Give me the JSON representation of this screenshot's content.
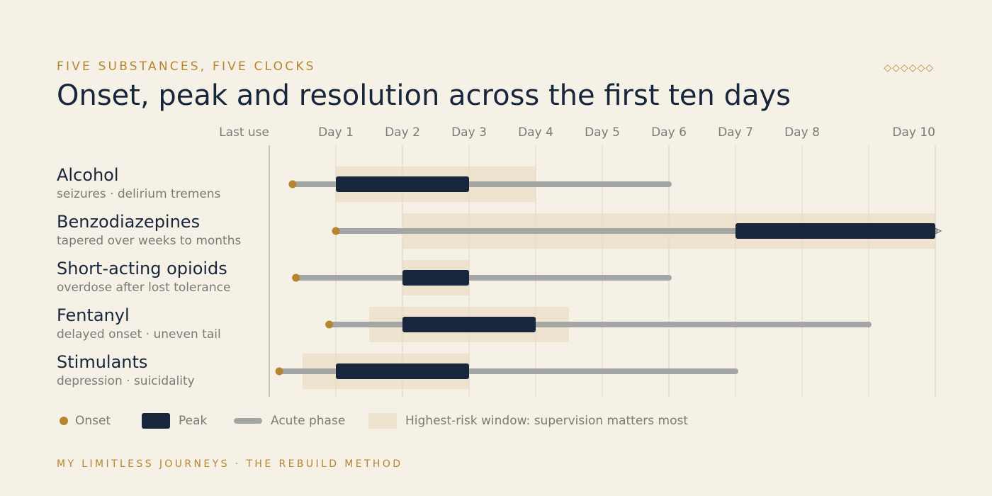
{
  "chart_data": {
    "type": "timeline",
    "eyebrow": "FIVE SUBSTANCES, FIVE CLOCKS",
    "ornament": "◇◇◇◇◇◇",
    "title": "Onset, peak and resolution across the first ten days",
    "footer": "MY LIMITLESS JOURNEYS · THE REBUILD METHOD",
    "xlim": [
      0,
      10
    ],
    "xticks": [
      {
        "value": 0,
        "label": "Last use"
      },
      {
        "value": 1,
        "label": "Day 1"
      },
      {
        "value": 2,
        "label": "Day 2"
      },
      {
        "value": 3,
        "label": "Day 3"
      },
      {
        "value": 4,
        "label": "Day 4"
      },
      {
        "value": 5,
        "label": "Day 5"
      },
      {
        "value": 6,
        "label": "Day 6"
      },
      {
        "value": 7,
        "label": "Day 7"
      },
      {
        "value": 8,
        "label": "Day 8"
      },
      {
        "value": 9,
        "label": null
      },
      {
        "value": 10,
        "label": "Day 10"
      }
    ],
    "grid": true,
    "colors": {
      "onset": "#b5852f",
      "peak": "#17263a",
      "acute": "#a4a6a6",
      "risk": "#ede3cf"
    },
    "legend": {
      "onset": "Onset",
      "peak": "Peak",
      "acute": "Acute phase",
      "risk": "Highest-risk window: supervision matters most"
    },
    "rows": [
      {
        "name": "Alcohol",
        "note": "seizures · delirium tremens",
        "onset": 0.35,
        "peak": [
          1,
          3
        ],
        "acute_end": 6,
        "risk": [
          1,
          4
        ],
        "ongoing": false
      },
      {
        "name": "Benzodiazepines",
        "note": "tapered over weeks to months",
        "onset": 1,
        "peak": [
          7,
          10
        ],
        "acute_end": 10,
        "risk": [
          2,
          10
        ],
        "ongoing": true
      },
      {
        "name": "Short-acting opioids",
        "note": "overdose after lost tolerance",
        "onset": 0.4,
        "peak": [
          2,
          3
        ],
        "acute_end": 6,
        "risk": [
          2,
          3
        ],
        "ongoing": false
      },
      {
        "name": "Fentanyl",
        "note": "delayed onset · uneven tail",
        "onset": 0.9,
        "peak": [
          2,
          4
        ],
        "acute_end": 9,
        "risk": [
          1.5,
          4.5
        ],
        "ongoing": false
      },
      {
        "name": "Stimulants",
        "note": "depression · suicidality",
        "onset": 0.15,
        "peak": [
          1,
          3
        ],
        "acute_end": 7,
        "risk": [
          0.5,
          3
        ],
        "ongoing": false
      }
    ]
  }
}
